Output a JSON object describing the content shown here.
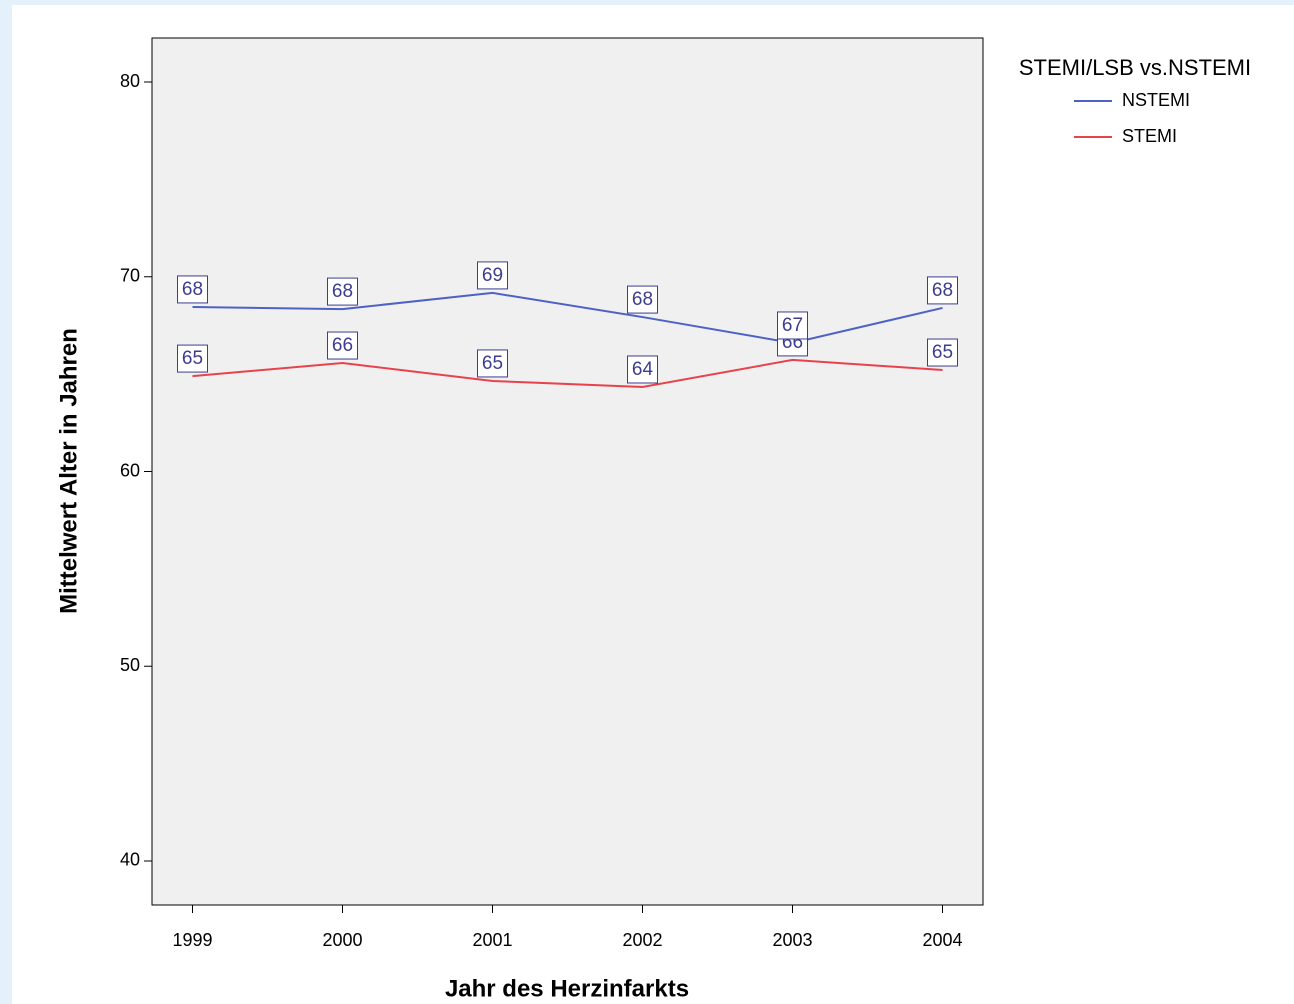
{
  "chart_data": {
    "type": "line",
    "x": [
      1999,
      2000,
      2001,
      2002,
      2003,
      2004
    ],
    "xlim": [
      1998.73,
      2004.27
    ],
    "xticks": [
      1999,
      2000,
      2001,
      2002,
      2003,
      2004
    ],
    "ylim": [
      37.74,
      82.26
    ],
    "yticks": [
      40,
      50,
      60,
      70,
      80
    ],
    "xlabel": "Jahr des Herzinfarkts",
    "ylabel": "Mittelwert Alter in Jahren",
    "legend_title": "STEMI/LSB vs.NSTEMI",
    "legend": "top-right",
    "series": [
      {
        "name": "NSTEMI",
        "color": "#4d62c4",
        "values": [
          68.45,
          68.34,
          69.17,
          67.93,
          66.6,
          68.4
        ],
        "value_labels": [
          "68",
          "68",
          "69",
          "68",
          "67",
          "68"
        ]
      },
      {
        "name": "STEMI",
        "color": "#e8434d",
        "values": [
          64.9,
          65.57,
          64.65,
          64.34,
          65.73,
          65.21
        ],
        "value_labels": [
          "65",
          "66",
          "65",
          "64",
          "66",
          "65"
        ]
      }
    ]
  }
}
